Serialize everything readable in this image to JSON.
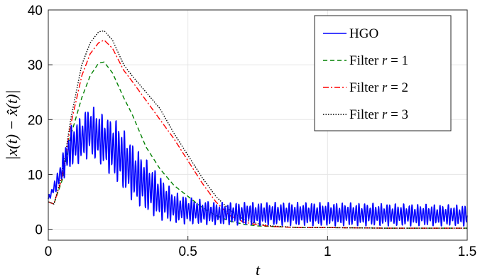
{
  "chart_data": {
    "type": "line",
    "xlabel": "t",
    "ylabel": "|x(t) − x̂(t)|",
    "xlim": [
      0,
      1.5
    ],
    "ylim": [
      -2,
      40
    ],
    "xticks": [
      0,
      0.5,
      1,
      1.5
    ],
    "xtick_labels": [
      "0",
      "0.5",
      "1",
      "1.5"
    ],
    "yticks": [
      0,
      10,
      20,
      30,
      40
    ],
    "ytick_labels": [
      "0",
      "10",
      "20",
      "30",
      "40"
    ],
    "grid": true,
    "legend_position": "top-right",
    "series": [
      {
        "name": "HGO",
        "legend_label": "HGO",
        "legend_var": "",
        "legend_eq": "",
        "color": "#0000ff",
        "dash": "solid",
        "oscillation": {
          "frequency_per_unit_t": 100,
          "envelope_t": [
            0,
            0.03,
            0.08,
            0.12,
            0.15,
            0.2,
            0.25,
            0.3,
            0.35,
            0.4,
            0.45,
            0.5,
            0.6,
            0.75,
            1.0,
            1.5
          ],
          "envelope_low": [
            5,
            7,
            11,
            12,
            13,
            11,
            8,
            5,
            3,
            1.5,
            1,
            0.8,
            0.7,
            0.6,
            0.5,
            0.5
          ],
          "envelope_high": [
            6,
            10,
            19,
            21,
            23,
            21,
            20,
            16,
            13,
            10,
            7,
            6,
            5,
            5,
            5,
            4.5
          ]
        }
      },
      {
        "name": "Filter r = 1",
        "legend_label": "Filter ",
        "legend_var": "r",
        "legend_eq": " = 1",
        "color": "#008000",
        "dash": "6,4",
        "x": [
          0,
          0.02,
          0.05,
          0.08,
          0.12,
          0.15,
          0.18,
          0.2,
          0.23,
          0.27,
          0.3,
          0.35,
          0.4,
          0.45,
          0.5,
          0.55,
          0.6,
          0.65,
          0.7,
          0.75,
          0.8,
          0.9,
          1.0,
          1.2,
          1.5
        ],
        "y": [
          5,
          4.6,
          9,
          17,
          24,
          28,
          30.3,
          30.5,
          28.5,
          24,
          21,
          15,
          11,
          8,
          6,
          4,
          2.5,
          1.5,
          0.9,
          0.6,
          0.5,
          0.3,
          0.3,
          0.2,
          0.2
        ]
      },
      {
        "name": "Filter r = 2",
        "legend_label": "Filter ",
        "legend_var": "r",
        "legend_eq": " = 2",
        "color": "#ff0000",
        "dash": "8,3,2,3",
        "x": [
          0,
          0.02,
          0.05,
          0.08,
          0.12,
          0.15,
          0.18,
          0.2,
          0.23,
          0.27,
          0.3,
          0.35,
          0.4,
          0.45,
          0.5,
          0.55,
          0.6,
          0.65,
          0.7,
          0.75,
          0.8,
          0.9,
          1.0,
          1.2,
          1.5
        ],
        "y": [
          5,
          4.6,
          9.5,
          19,
          28,
          32,
          34,
          34.5,
          33,
          29,
          27,
          23.5,
          20,
          16.5,
          12.5,
          8.5,
          5,
          2.5,
          1.3,
          0.8,
          0.5,
          0.3,
          0.3,
          0.2,
          0.2
        ]
      },
      {
        "name": "Filter r = 3",
        "legend_label": "Filter ",
        "legend_var": "r",
        "legend_eq": " = 3",
        "color": "#000000",
        "dash": "1.5,2",
        "x": [
          0,
          0.02,
          0.05,
          0.08,
          0.12,
          0.15,
          0.18,
          0.2,
          0.23,
          0.27,
          0.3,
          0.35,
          0.4,
          0.45,
          0.5,
          0.55,
          0.6,
          0.65,
          0.7,
          0.75,
          0.8,
          0.9,
          1.0,
          1.2,
          1.5
        ],
        "y": [
          5,
          4.6,
          10,
          20,
          30,
          34,
          36,
          36.2,
          34.5,
          30,
          28,
          25,
          22,
          17.5,
          13.5,
          9.5,
          6,
          3.5,
          1.8,
          1.0,
          0.6,
          0.3,
          0.3,
          0.2,
          0.2
        ]
      }
    ]
  }
}
